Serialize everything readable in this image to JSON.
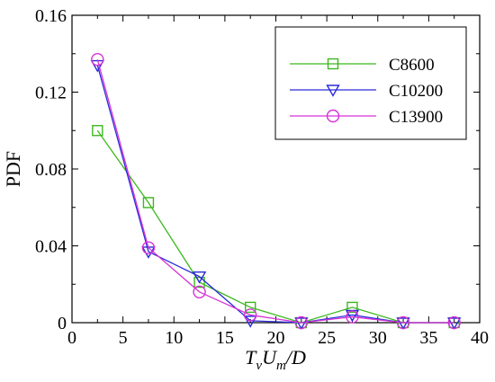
{
  "chart_data": {
    "type": "line",
    "ylabel": "PDF",
    "xlabel": {
      "main1": "T",
      "sub1": "v",
      "main2": "U",
      "sub2": "m",
      "main3": "/D"
    },
    "xlim": [
      0,
      40
    ],
    "ylim": [
      0,
      0.16
    ],
    "xticks": [
      "0",
      "5",
      "10",
      "15",
      "20",
      "25",
      "30",
      "35",
      "40"
    ],
    "yticks": [
      "0",
      "0.04",
      "0.08",
      "0.12",
      "0.16"
    ],
    "grid": false,
    "legend_position": "top-right",
    "x": [
      2.5,
      7.5,
      12.5,
      17.5,
      22.5,
      27.5,
      32.5,
      37.5
    ],
    "series": [
      {
        "name": "C8600",
        "color": "#3cb81e",
        "marker": "square",
        "values": [
          0.1,
          0.0625,
          0.021,
          0.008,
          0.0,
          0.008,
          0.0,
          0.0
        ]
      },
      {
        "name": "C10200",
        "color": "#2b2bd9",
        "marker": "triangle-down",
        "values": [
          0.134,
          0.037,
          0.024,
          0.001,
          0.0,
          0.004,
          0.0,
          0.0
        ]
      },
      {
        "name": "C13900",
        "color": "#d633d6",
        "marker": "circle",
        "values": [
          0.137,
          0.039,
          0.016,
          0.004,
          0.0,
          0.003,
          0.0,
          0.0
        ]
      }
    ]
  }
}
